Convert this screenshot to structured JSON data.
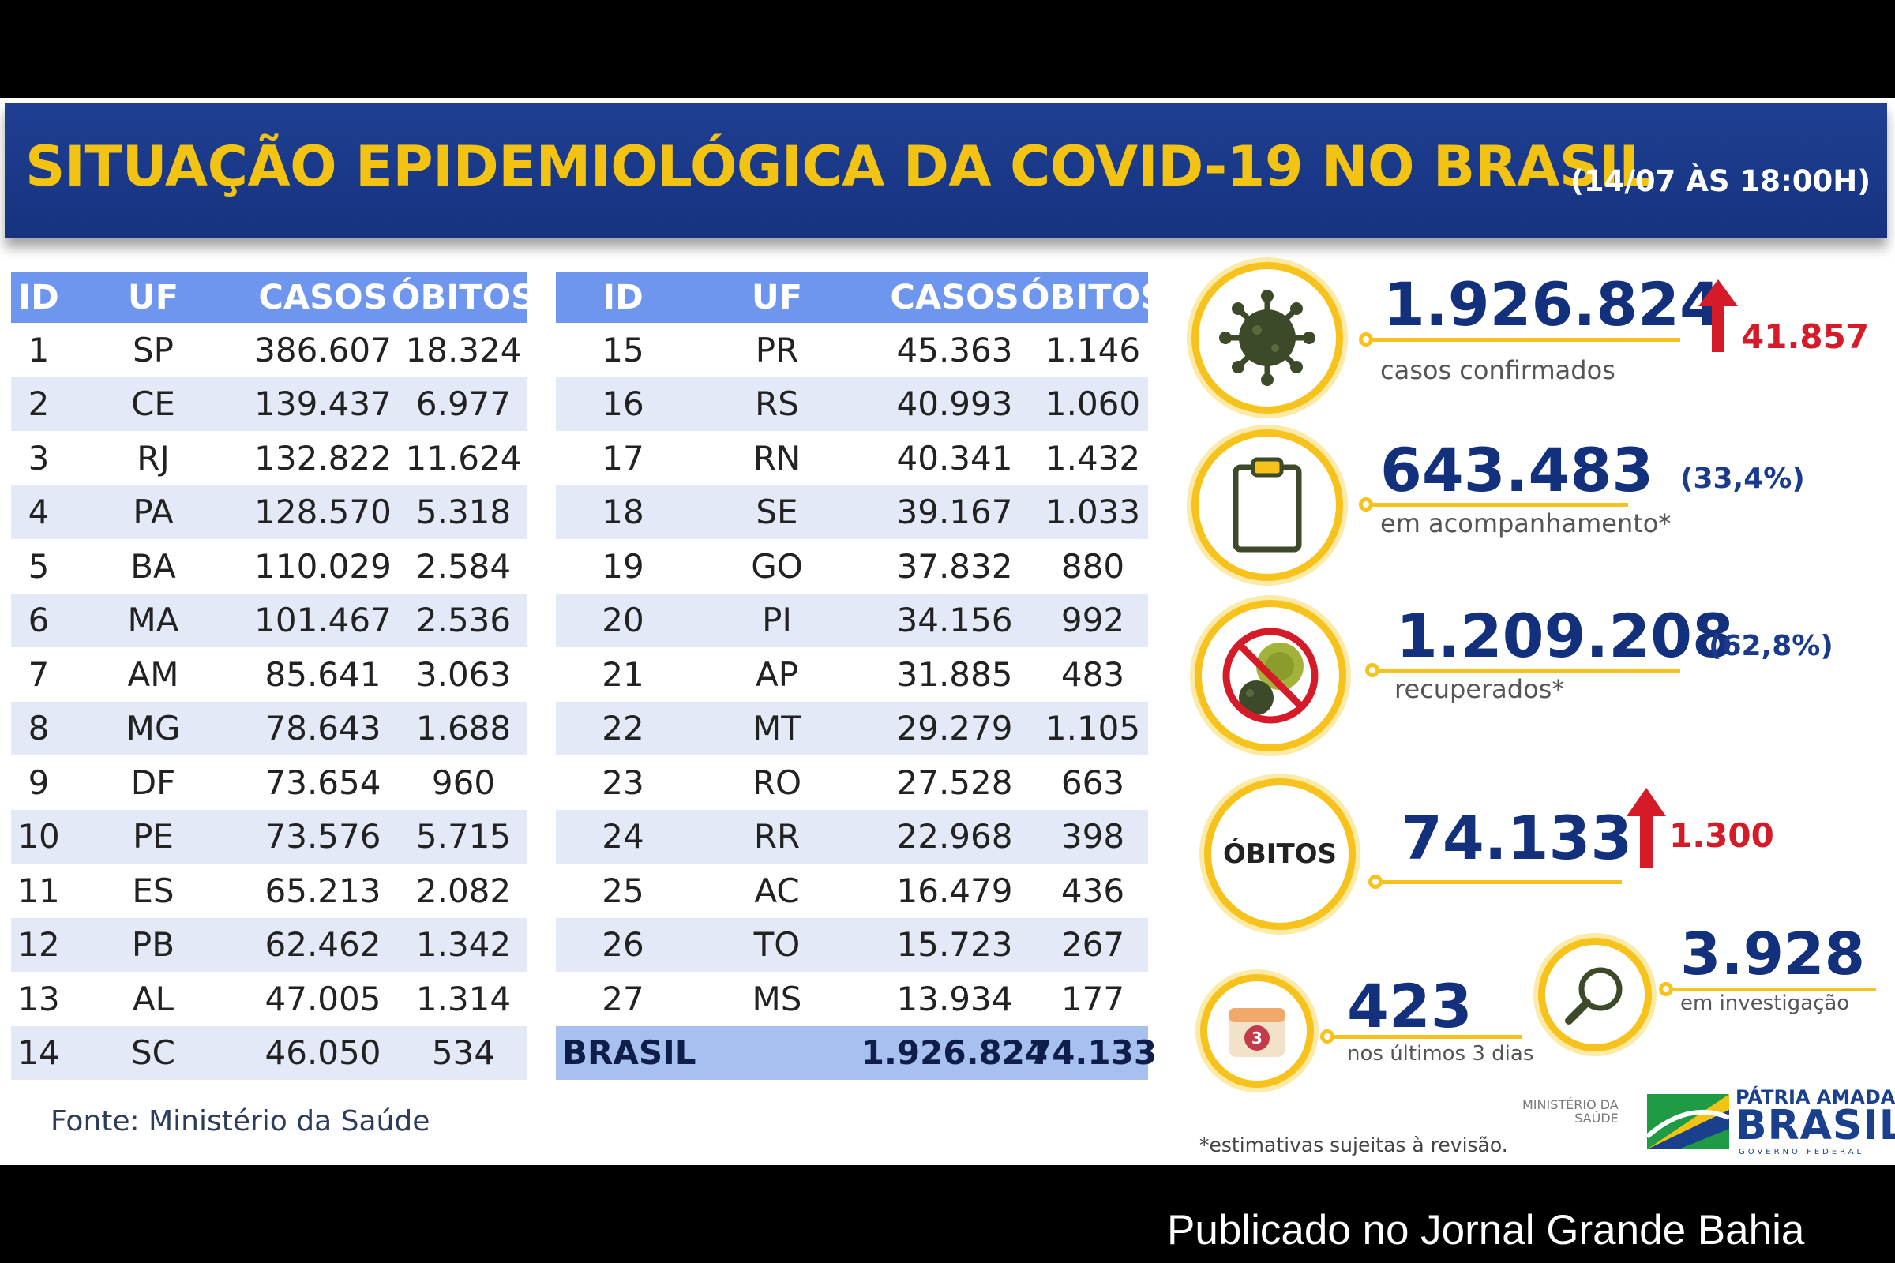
{
  "header": {
    "title": "SITUAÇÃO EPIDEMIOLÓGICA DA COVID-19 NO BRASIL",
    "subtitle": "(14/07 ÀS 18:00H)"
  },
  "table": {
    "columns": [
      "ID",
      "UF",
      "CASOS",
      "ÓBITOS"
    ],
    "left_rows": [
      {
        "id": "1",
        "uf": "SP",
        "casos": "386.607",
        "obitos": "18.324"
      },
      {
        "id": "2",
        "uf": "CE",
        "casos": "139.437",
        "obitos": "6.977"
      },
      {
        "id": "3",
        "uf": "RJ",
        "casos": "132.822",
        "obitos": "11.624"
      },
      {
        "id": "4",
        "uf": "PA",
        "casos": "128.570",
        "obitos": "5.318"
      },
      {
        "id": "5",
        "uf": "BA",
        "casos": "110.029",
        "obitos": "2.584"
      },
      {
        "id": "6",
        "uf": "MA",
        "casos": "101.467",
        "obitos": "2.536"
      },
      {
        "id": "7",
        "uf": "AM",
        "casos": "85.641",
        "obitos": "3.063"
      },
      {
        "id": "8",
        "uf": "MG",
        "casos": "78.643",
        "obitos": "1.688"
      },
      {
        "id": "9",
        "uf": "DF",
        "casos": "73.654",
        "obitos": "960"
      },
      {
        "id": "10",
        "uf": "PE",
        "casos": "73.576",
        "obitos": "5.715"
      },
      {
        "id": "11",
        "uf": "ES",
        "casos": "65.213",
        "obitos": "2.082"
      },
      {
        "id": "12",
        "uf": "PB",
        "casos": "62.462",
        "obitos": "1.342"
      },
      {
        "id": "13",
        "uf": "AL",
        "casos": "47.005",
        "obitos": "1.314"
      },
      {
        "id": "14",
        "uf": "SC",
        "casos": "46.050",
        "obitos": "534"
      }
    ],
    "right_rows": [
      {
        "id": "15",
        "uf": "PR",
        "casos": "45.363",
        "obitos": "1.146"
      },
      {
        "id": "16",
        "uf": "RS",
        "casos": "40.993",
        "obitos": "1.060"
      },
      {
        "id": "17",
        "uf": "RN",
        "casos": "40.341",
        "obitos": "1.432"
      },
      {
        "id": "18",
        "uf": "SE",
        "casos": "39.167",
        "obitos": "1.033"
      },
      {
        "id": "19",
        "uf": "GO",
        "casos": "37.832",
        "obitos": "880"
      },
      {
        "id": "20",
        "uf": "PI",
        "casos": "34.156",
        "obitos": "992"
      },
      {
        "id": "21",
        "uf": "AP",
        "casos": "31.885",
        "obitos": "483"
      },
      {
        "id": "22",
        "uf": "MT",
        "casos": "29.279",
        "obitos": "1.105"
      },
      {
        "id": "23",
        "uf": "RO",
        "casos": "27.528",
        "obitos": "663"
      },
      {
        "id": "24",
        "uf": "RR",
        "casos": "22.968",
        "obitos": "398"
      },
      {
        "id": "25",
        "uf": "AC",
        "casos": "16.479",
        "obitos": "436"
      },
      {
        "id": "26",
        "uf": "TO",
        "casos": "15.723",
        "obitos": "267"
      },
      {
        "id": "27",
        "uf": "MS",
        "casos": "13.934",
        "obitos": "177"
      }
    ],
    "total": {
      "label": "BRASIL",
      "casos": "1.926.824",
      "obitos": "74.133"
    }
  },
  "source": "Fonte: Ministério da Saúde",
  "stats": {
    "confirmed": {
      "value": "1.926.824",
      "label": "casos confirmados",
      "increase": "41.857",
      "icon": "virus-icon"
    },
    "monitoring": {
      "value": "643.483",
      "label": "em acompanhamento*",
      "percent": "(33,4%)",
      "icon": "clipboard-icon"
    },
    "recovered": {
      "value": "1.209.208",
      "label": "recuperados*",
      "percent": "(62,8%)",
      "icon": "no-virus-icon"
    },
    "deaths": {
      "value": "74.133",
      "ring_label": "ÓBITOS",
      "increase": "1.300"
    },
    "investigation": {
      "value": "3.928",
      "label": "em investigação",
      "icon": "magnifier-icon"
    },
    "last3days": {
      "value": "423",
      "label": "nos últimos 3 dias",
      "calendar_number": "3",
      "icon": "calendar-icon"
    }
  },
  "footnote": "*estimativas sujeitas à revisão.",
  "logos": {
    "ministry": [
      "MINISTÉRIO DA",
      "SAÚDE"
    ],
    "brasil_top": "PÁTRIA AMADA",
    "brasil_main": "BRASIL",
    "brasil_sub": "GOVERNO FEDERAL"
  },
  "publisher": "Publicado no Jornal Grande Bahia",
  "colors": {
    "header_bg": "#163380",
    "title": "#f3c313",
    "table_head": "#6f96ee",
    "row_shade": "#e3e9f6",
    "total_row": "#a8c0ef",
    "ring": "#f7c21b",
    "big_number": "#12307c",
    "increase": "#d51a28"
  }
}
